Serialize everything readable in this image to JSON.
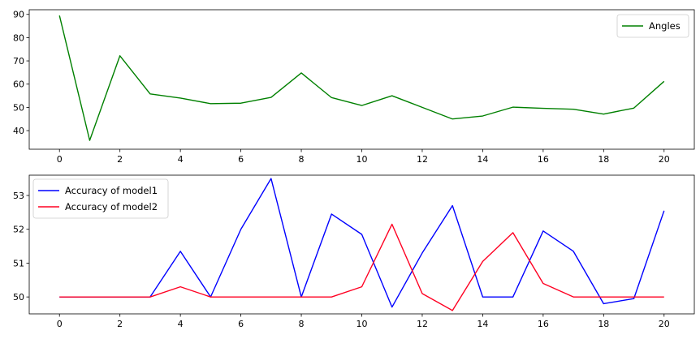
{
  "chart_data": [
    {
      "type": "line",
      "x": [
        0,
        1,
        2,
        3,
        4,
        5,
        6,
        7,
        8,
        9,
        10,
        11,
        12,
        13,
        14,
        15,
        16,
        17,
        18,
        19,
        20
      ],
      "series": [
        {
          "name": "Angles",
          "color": "#008000",
          "values": [
            89.5,
            35.8,
            72.2,
            55.8,
            54.0,
            51.6,
            51.8,
            54.3,
            64.8,
            54.2,
            50.8,
            55.0,
            50.0,
            45.0,
            46.3,
            50.1,
            49.6,
            49.2,
            47.1,
            49.7,
            61.2
          ]
        }
      ],
      "xlim": [
        -1,
        21
      ],
      "ylim": [
        32,
        92
      ],
      "xticks": [
        0,
        2,
        4,
        6,
        8,
        10,
        12,
        14,
        16,
        18,
        20
      ],
      "yticks": [
        40,
        50,
        60,
        70,
        80,
        90
      ],
      "legend": "top-right"
    },
    {
      "type": "line",
      "x": [
        0,
        1,
        2,
        3,
        4,
        5,
        6,
        7,
        8,
        9,
        10,
        11,
        12,
        13,
        14,
        15,
        16,
        17,
        18,
        19,
        20
      ],
      "series": [
        {
          "name": "Accuracy of model1",
          "color": "#0000ff",
          "values": [
            50.0,
            50.0,
            50.0,
            50.0,
            51.35,
            50.0,
            52.0,
            53.5,
            50.0,
            52.45,
            51.85,
            49.7,
            51.3,
            52.7,
            50.0,
            50.0,
            51.95,
            51.35,
            49.8,
            49.95,
            52.55
          ]
        },
        {
          "name": "Accuracy of model2",
          "color": "#ff0022",
          "values": [
            50.0,
            50.0,
            50.0,
            50.0,
            50.3,
            50.0,
            50.0,
            50.0,
            50.0,
            50.0,
            50.3,
            52.15,
            50.1,
            49.6,
            51.05,
            51.9,
            50.4,
            50.0,
            50.0,
            50.0,
            50.0
          ]
        }
      ],
      "xlim": [
        -1,
        21
      ],
      "ylim": [
        49.5,
        53.6
      ],
      "xticks": [
        0,
        2,
        4,
        6,
        8,
        10,
        12,
        14,
        16,
        18,
        20
      ],
      "yticks": [
        50,
        51,
        52,
        53
      ],
      "legend": "top-left"
    }
  ]
}
